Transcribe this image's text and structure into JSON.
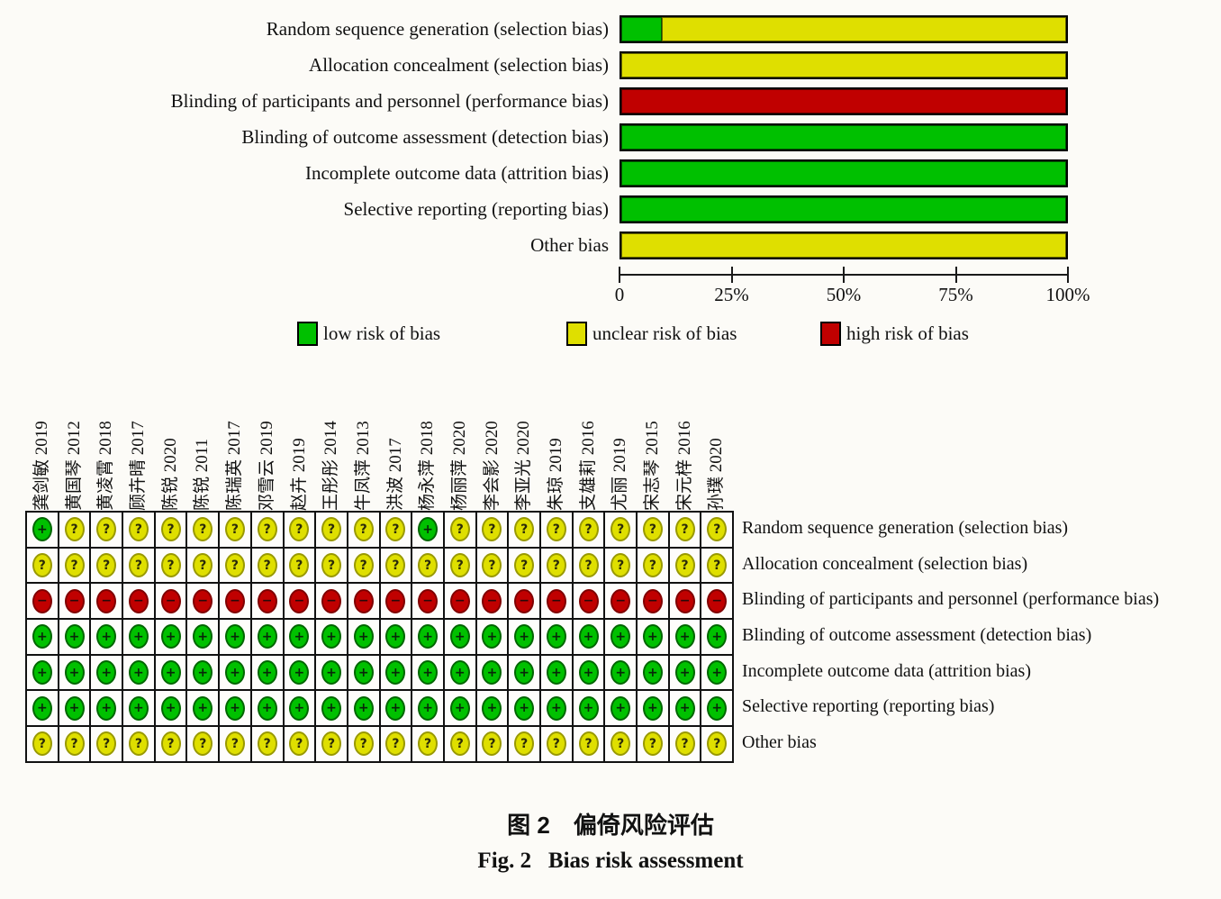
{
  "colors": {
    "low": "#00c000",
    "unclear": "#dfdf00",
    "high": "#c00000",
    "low_border": "#006600",
    "unclear_border": "#999900",
    "high_border": "#800000",
    "bar_border": "#000000",
    "background": "#fcfbf7"
  },
  "chart_data": {
    "type": "bar",
    "orientation": "horizontal",
    "stacked": true,
    "categories": [
      "Random sequence generation (selection bias)",
      "Allocation concealment (selection bias)",
      "Blinding of participants and personnel (performance bias)",
      "Blinding of outcome assessment (detection bias)",
      "Incomplete outcome data (attrition bias)",
      "Selective reporting (reporting bias)",
      "Other bias"
    ],
    "series": [
      {
        "name": "low risk of bias",
        "key": "low",
        "values": [
          9.1,
          0,
          0,
          100,
          100,
          100,
          0
        ]
      },
      {
        "name": "unclear risk of bias",
        "key": "unclear",
        "values": [
          90.9,
          100,
          0,
          0,
          0,
          0,
          100
        ]
      },
      {
        "name": "high risk of bias",
        "key": "high",
        "values": [
          0,
          0,
          100,
          0,
          0,
          0,
          0
        ]
      }
    ],
    "x_ticks": [
      "0",
      "25%",
      "50%",
      "75%",
      "100%"
    ],
    "xlim": [
      0,
      100
    ],
    "grid": false,
    "legend_position": "bottom"
  },
  "legend": [
    {
      "key": "low",
      "label": "low risk of bias",
      "color": "#00c000"
    },
    {
      "key": "unclear",
      "label": "unclear risk of bias",
      "color": "#dfdf00"
    },
    {
      "key": "high",
      "label": "high risk of bias",
      "color": "#c00000"
    }
  ],
  "matrix": {
    "studies": [
      "龚剑敏 2019",
      "黄国琴 2012",
      "黄凌霄 2018",
      "顾卉晴 2017",
      "陈锐 2020",
      "陈锐 2011",
      "陈瑞英 2017",
      "邓雪云 2019",
      "赵卉 2019",
      "王彤彤 2014",
      "牛凤萍 2013",
      "洪波 2017",
      "杨永萍 2018",
      "杨丽萍 2020",
      "李会影 2020",
      "李亚光 2020",
      "朱琼 2019",
      "支雄莉 2016",
      "尤丽 2019",
      "宋志琴 2015",
      "宋元梓 2016",
      "孙璞 2020"
    ],
    "codes": {
      "L": "low",
      "U": "unclear",
      "H": "high"
    },
    "symbols": {
      "low": "+",
      "unclear": "?",
      "high": "−"
    },
    "rows": [
      {
        "label": "Random sequence generation (selection bias)",
        "judgments": "LUUUUUUUUUUULUUUUUUUUU"
      },
      {
        "label": "Allocation concealment (selection bias)",
        "judgments": "UUUUUUUUUUUUUUUUUUUUUU"
      },
      {
        "label": "Blinding of participants and personnel (performance bias)",
        "judgments": "HHHHHHHHHHHHHHHHHHHHHH"
      },
      {
        "label": "Blinding of outcome assessment (detection bias)",
        "judgments": "LLLLLLLLLLLLLLLLLLLLLL"
      },
      {
        "label": "Incomplete outcome data (attrition bias)",
        "judgments": "LLLLLLLLLLLLLLLLLLLLLL"
      },
      {
        "label": "Selective reporting (reporting bias)",
        "judgments": "LLLLLLLLLLLLLLLLLLLLLL"
      },
      {
        "label": "Other bias",
        "judgments": "UUUUUUUUUUUUUUUUUUUUUU"
      }
    ]
  },
  "caption": {
    "zh": "图 2　偏倚风险评估",
    "en": "Fig. 2   Bias risk assessment"
  }
}
